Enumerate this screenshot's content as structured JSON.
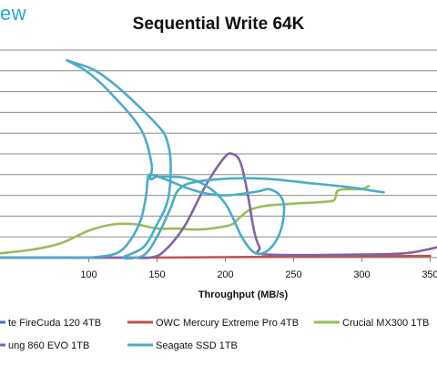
{
  "logo_text": "ew",
  "chart_data": {
    "type": "line",
    "title": "Sequential Write 64K",
    "xlabel": "Throughput (MB/s)",
    "ylabel": "",
    "xlim": [
      35,
      355
    ],
    "ylim": [
      0,
      100
    ],
    "xticks": [
      100,
      150,
      200,
      250,
      300,
      350
    ],
    "xtick_labels": [
      "100",
      "150",
      "200",
      "250",
      "300",
      "350"
    ],
    "grid": "horizontal",
    "legend_placement": "bottom",
    "series": [
      {
        "name": "te FireCuda 120 4TB",
        "color": "#4472c4",
        "points": []
      },
      {
        "name": "OWC Mercury Extreme Pro 4TB",
        "color": "#c0504d",
        "points": [
          [
            35,
            0
          ],
          [
            100,
            0
          ],
          [
            150,
            0
          ],
          [
            200,
            0.2
          ],
          [
            250,
            0.4
          ],
          [
            300,
            0.6
          ],
          [
            350,
            0.8
          ]
        ]
      },
      {
        "name": "Crucial MX300 1TB",
        "color": "#9bbb59",
        "points": [
          [
            35,
            2
          ],
          [
            60,
            4
          ],
          [
            80,
            7
          ],
          [
            100,
            13
          ],
          [
            118,
            16
          ],
          [
            135,
            16
          ],
          [
            150,
            14
          ],
          [
            165,
            14
          ],
          [
            180,
            13.5
          ],
          [
            195,
            14.5
          ],
          [
            205,
            16
          ],
          [
            210,
            19
          ],
          [
            218,
            23
          ],
          [
            230,
            25
          ],
          [
            250,
            26
          ],
          [
            275,
            27
          ],
          [
            280,
            28
          ],
          [
            282,
            32
          ],
          [
            288,
            33
          ],
          [
            300,
            33
          ],
          [
            305,
            34.5
          ]
        ]
      },
      {
        "name": "ung 860 EVO 1TB",
        "color": "#8064a2",
        "points": [
          [
            35,
            0
          ],
          [
            100,
            0
          ],
          [
            130,
            0
          ],
          [
            145,
            0
          ],
          [
            155,
            3
          ],
          [
            170,
            15
          ],
          [
            185,
            34
          ],
          [
            199,
            48
          ],
          [
            205,
            50
          ],
          [
            211,
            46
          ],
          [
            216,
            32
          ],
          [
            221,
            13
          ],
          [
            225,
            5
          ],
          [
            230,
            1.5
          ],
          [
            300,
            1.5
          ],
          [
            330,
            2
          ],
          [
            345,
            3.5
          ],
          [
            355,
            5
          ]
        ]
      },
      {
        "name": "Seagate SSD 1TB",
        "color": "#4bacc6",
        "points": [
          [
            35,
            0
          ],
          [
            60,
            0
          ],
          [
            80,
            0
          ],
          [
            100,
            0
          ],
          [
            120,
            2
          ],
          [
            130,
            8
          ],
          [
            138,
            18
          ],
          [
            142,
            30
          ],
          [
            143,
            37
          ],
          [
            145,
            40
          ],
          [
            155,
            38
          ],
          [
            170,
            34
          ],
          [
            185,
            31
          ],
          [
            200,
            30
          ],
          [
            215,
            31
          ],
          [
            225,
            32
          ],
          [
            232,
            33
          ],
          [
            240,
            30
          ],
          [
            243,
            24
          ],
          [
            241,
            14
          ],
          [
            235,
            6
          ],
          [
            227,
            2
          ],
          [
            220,
            3
          ],
          [
            212,
            10
          ],
          [
            200,
            26
          ],
          [
            185,
            35
          ],
          [
            170,
            38.5
          ],
          [
            160,
            39
          ],
          [
            150,
            39
          ],
          [
            145,
            38
          ],
          [
            146,
            45
          ],
          [
            138,
            62
          ],
          [
            115,
            80
          ],
          [
            100,
            89
          ],
          [
            90,
            93
          ],
          [
            84,
            95
          ],
          [
            89,
            94
          ],
          [
            105,
            90
          ],
          [
            125,
            80
          ],
          [
            150,
            64
          ],
          [
            157,
            57
          ],
          [
            160,
            45
          ],
          [
            158,
            28
          ],
          [
            150,
            16
          ],
          [
            140,
            5
          ],
          [
            125,
            0
          ],
          [
            140,
            1
          ],
          [
            150,
            10
          ],
          [
            160,
            24
          ],
          [
            165,
            32
          ],
          [
            175,
            36
          ],
          [
            200,
            38
          ],
          [
            230,
            38
          ],
          [
            260,
            36
          ],
          [
            290,
            34
          ],
          [
            310,
            32
          ],
          [
            316,
            31.5
          ]
        ]
      }
    ]
  }
}
